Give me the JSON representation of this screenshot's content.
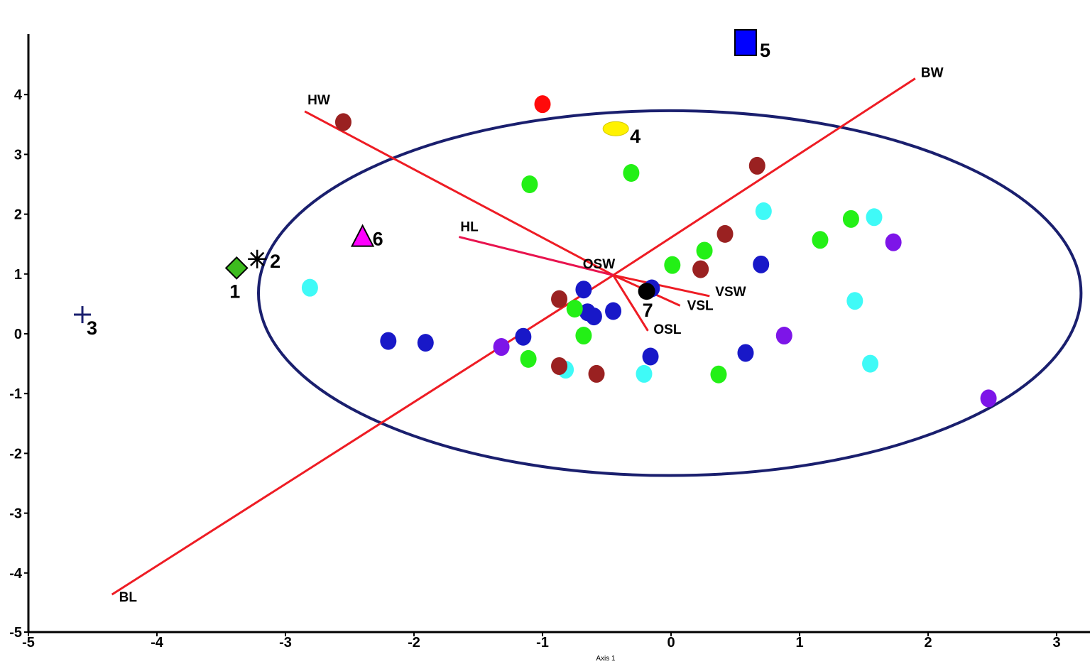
{
  "chart_data": {
    "type": "scatter",
    "title": "",
    "xlabel": "Axis 1",
    "ylabel": "",
    "xlim": [
      -5,
      3.3
    ],
    "ylim": [
      -5,
      5
    ],
    "x_ticks": [
      "-5",
      "-4",
      "-3",
      "-2",
      "-1",
      "0",
      "1",
      "2",
      "3"
    ],
    "y_ticks": [
      "-5",
      "-4",
      "-3",
      "-2",
      "-1",
      "0",
      "1",
      "2",
      "3",
      "4"
    ],
    "grid": false,
    "ellipse": {
      "center": [
        -0.01,
        0.68
      ],
      "radius_x": 3.2,
      "radius_y": 3.05,
      "color": "#1a1f6e"
    },
    "vectors": [
      {
        "label": "BW",
        "color": "#ee1c24",
        "from": [
          -0.45,
          0.98
        ],
        "to": [
          1.9,
          4.27
        ]
      },
      {
        "label": "BL",
        "color": "#ee1c24",
        "from": [
          -0.45,
          0.98
        ],
        "to": [
          -4.35,
          -4.36
        ]
      },
      {
        "label": "HW",
        "color": "#ee1c24",
        "from": [
          -0.45,
          0.98
        ],
        "to": [
          -2.85,
          3.72
        ]
      },
      {
        "label": "HL",
        "color": "#e8134e",
        "from": [
          -0.45,
          0.98
        ],
        "to": [
          -1.65,
          1.62
        ]
      },
      {
        "label": "OSW",
        "color": "#ee1c24",
        "from": [
          -0.45,
          0.98
        ],
        "to": [
          -0.55,
          0.95
        ]
      },
      {
        "label": "VSW",
        "color": "#ee1c24",
        "from": [
          -0.45,
          0.98
        ],
        "to": [
          0.3,
          0.63
        ]
      },
      {
        "label": "VSL",
        "color": "#ee1c24",
        "from": [
          -0.45,
          0.98
        ],
        "to": [
          0.07,
          0.47
        ]
      },
      {
        "label": "OSL",
        "color": "#ee1c24",
        "from": [
          -0.45,
          0.98
        ],
        "to": [
          -0.18,
          0.05
        ]
      }
    ],
    "numbered_points": [
      {
        "label": "1",
        "marker": "diamond",
        "color": "#3dbb1e",
        "x": -3.38,
        "y": 1.1
      },
      {
        "label": "2",
        "marker": "asterisk",
        "color": "#000000",
        "x": -3.22,
        "y": 1.25
      },
      {
        "label": "3",
        "marker": "plus",
        "color": "#1a1f6e",
        "x": -4.58,
        "y": 0.32
      },
      {
        "label": "4",
        "marker": "ellipse",
        "color": "#fff200",
        "x": -0.43,
        "y": 3.43
      },
      {
        "label": "5",
        "marker": "square",
        "color": "#0000ff",
        "x": 0.58,
        "y": 4.87
      },
      {
        "label": "6",
        "marker": "triangle",
        "color": "#ff00ff",
        "x": -2.4,
        "y": 1.62
      },
      {
        "label": "7",
        "marker": "circle",
        "color": "#000000",
        "x": -0.19,
        "y": 0.71
      }
    ],
    "series": [
      {
        "color": "#1818c8",
        "points": [
          [
            -2.2,
            -0.12
          ],
          [
            -1.91,
            -0.15
          ],
          [
            -1.15,
            -0.05
          ],
          [
            -0.68,
            0.74
          ],
          [
            -0.65,
            0.36
          ],
          [
            -0.6,
            0.29
          ],
          [
            -0.45,
            0.38
          ],
          [
            -0.15,
            0.76
          ],
          [
            -0.16,
            -0.38
          ],
          [
            0.58,
            -0.32
          ],
          [
            0.7,
            1.16
          ]
        ]
      },
      {
        "color": "#23f016",
        "points": [
          [
            -1.1,
            2.5
          ],
          [
            -0.31,
            2.69
          ],
          [
            -0.75,
            0.42
          ],
          [
            -0.68,
            -0.03
          ],
          [
            -1.11,
            -0.42
          ],
          [
            0.01,
            1.15
          ],
          [
            0.26,
            1.39
          ],
          [
            1.16,
            1.57
          ],
          [
            1.4,
            1.92
          ],
          [
            0.37,
            -0.68
          ]
        ]
      },
      {
        "color": "#3ffaf7",
        "points": [
          [
            -2.81,
            0.77
          ],
          [
            0.72,
            2.05
          ],
          [
            1.58,
            1.95
          ],
          [
            1.43,
            0.55
          ],
          [
            1.55,
            -0.5
          ],
          [
            -0.21,
            -0.67
          ],
          [
            -0.82,
            -0.6
          ]
        ]
      },
      {
        "color": "#9a2121",
        "points": [
          [
            -2.55,
            3.54
          ],
          [
            0.67,
            2.81
          ],
          [
            0.42,
            1.67
          ],
          [
            0.23,
            1.08
          ],
          [
            -0.87,
            0.58
          ],
          [
            -0.87,
            -0.54
          ],
          [
            -0.58,
            -0.67
          ]
        ]
      },
      {
        "color": "#7d15e8",
        "points": [
          [
            -1.32,
            -0.22
          ],
          [
            1.73,
            1.53
          ],
          [
            0.88,
            -0.03
          ],
          [
            2.47,
            -1.08
          ]
        ]
      },
      {
        "color": "#ff0a0a",
        "points": [
          [
            -1.0,
            3.84
          ]
        ]
      }
    ]
  }
}
